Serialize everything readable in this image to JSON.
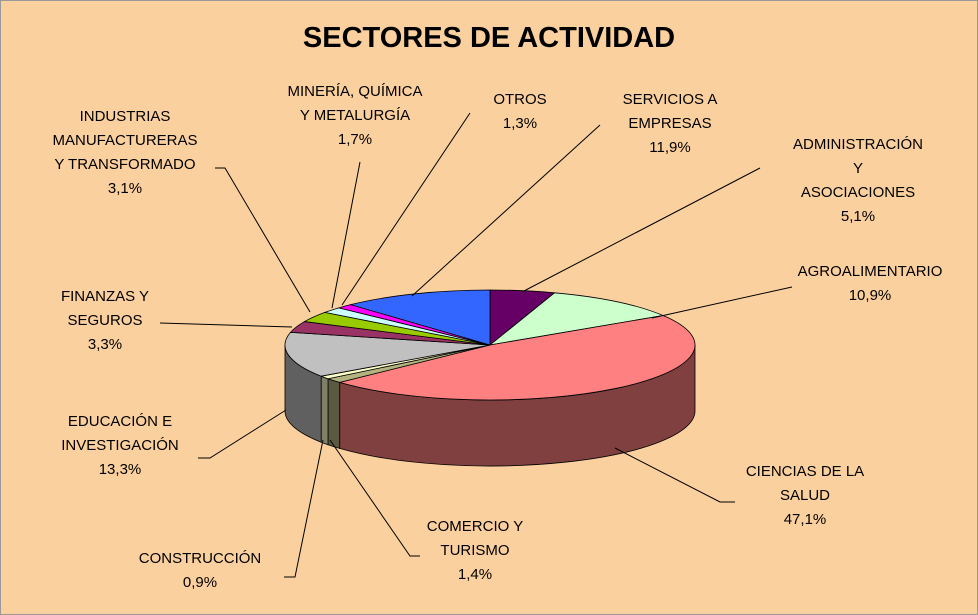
{
  "chart_data": {
    "type": "pie3d",
    "title": "SECTORES DE ACTIVIDAD",
    "categories": [
      "ADMINISTRACIÓN Y\nASOCIACIONES",
      "AGROALIMENTARIO",
      "CIENCIAS DE LA\nSALUD",
      "COMERCIO Y\nTURISMO",
      "CONSTRUCCIÓN",
      "EDUCACIÓN E\nINVESTIGACIÓN",
      "FINANZAS Y\nSEGUROS",
      "INDUSTRIAS\nMANUFACTURERAS\nY TRANSFORMADO",
      "MINERÍA, QUÍMICA\nY METALURGÍA",
      "OTROS",
      "SERVICIOS A\nEMPRESAS"
    ],
    "values": [
      5.1,
      10.9,
      47.1,
      1.4,
      0.9,
      13.3,
      3.3,
      3.1,
      1.7,
      1.3,
      11.9
    ],
    "value_labels": [
      "5,1%",
      "10,9%",
      "47,1%",
      "1,4%",
      "0,9%",
      "13,3%",
      "3,3%",
      "3,1%",
      "1,7%",
      "1,3%",
      "11,9%"
    ],
    "colors": [
      "#660066",
      "#ccffcc",
      "#ff8080",
      "#b3b380",
      "#ffffcc",
      "#c0c0c0",
      "#993366",
      "#99cc00",
      "#ccffff",
      "#ff00ff",
      "#3366ff"
    ]
  }
}
